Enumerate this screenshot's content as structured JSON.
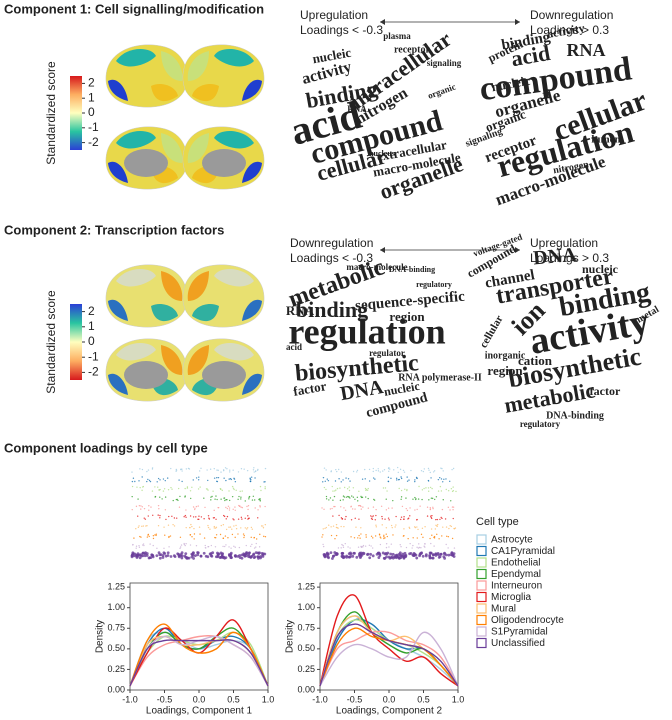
{
  "sections": [
    {
      "title": "Component 1: Cell signalling/modification",
      "colorbar": {
        "label": "Standardized score",
        "lim": [
          -2.5,
          2.5
        ],
        "ticks": [
          2,
          1,
          0,
          -1,
          -2
        ],
        "colors": [
          "#d7191c",
          "#fdae61",
          "#ffffbf",
          "#29c5a0",
          "#2b3fd6"
        ]
      },
      "arrow": {
        "left": [
          "Upregulation",
          "Loadings < -0.3"
        ],
        "right": [
          "Downregulation",
          "Loadings > 0.3"
        ]
      },
      "clouds": [
        {
          "color": "#2a3fd6",
          "words": [
            "intracellular",
            "acid",
            "binding",
            "compound",
            "cellular",
            "organelle",
            "extracellular",
            "macro-molecule",
            "nitrogen",
            "activity",
            "nucleic",
            "receptor",
            "plasma",
            "organic",
            "signaling",
            "RNA",
            "nucleus"
          ]
        },
        {
          "color": "#e0401a",
          "words": [
            "compound",
            "cellular",
            "regulation",
            "acid",
            "RNA",
            "binding",
            "macro-molecule",
            "organelle",
            "receptor",
            "nucleic",
            "organic",
            "protein",
            "activity",
            "lumen",
            "signaling",
            "nitrogen"
          ]
        }
      ]
    },
    {
      "title": "Component 2: Transcription factors",
      "colorbar": {
        "label": "Standardized score",
        "lim": [
          -2.5,
          2.5
        ],
        "ticks": [
          2,
          1,
          0,
          -1,
          -2
        ],
        "colors": [
          "#2b3fd6",
          "#29c5a0",
          "#ffffbf",
          "#fdae61",
          "#d7191c"
        ]
      },
      "arrow": {
        "left": [
          "Downregulation",
          "Loadings < -0.3"
        ],
        "right": [
          "Upregulation",
          "Loadings > 0.3"
        ]
      },
      "clouds": [
        {
          "color": "#e0401a",
          "words": [
            "regulation",
            "metabolic",
            "binding",
            "sequence-specific",
            "biosynthetic",
            "DNA",
            "compound",
            "nucleic",
            "RNA polymerase-II",
            "region",
            "RNA",
            "factor",
            "macro-molecule",
            "regulator",
            "acid",
            "DNA-binding",
            "regulatory"
          ]
        },
        {
          "color": "#2a3fd6",
          "words": [
            "activity",
            "binding",
            "transporter",
            "ion",
            "biosynthetic",
            "metabolic",
            "DNA",
            "channel",
            "compound",
            "nucleic",
            "cation",
            "region",
            "factor",
            "cellular",
            "metal",
            "inorganic",
            "DNA-binding",
            "voltage-gated",
            "regulatory"
          ]
        }
      ]
    }
  ],
  "loadings_title": "Component loadings by cell type",
  "chart_data": [
    {
      "type": "line",
      "legend_title": "Cell type",
      "xlabel": "Loadings, Component 1",
      "ylabel": "Density",
      "x": [
        -1,
        -0.75,
        -0.5,
        -0.25,
        0,
        0.25,
        0.5,
        0.75,
        1
      ],
      "xlim": [
        -1,
        1
      ],
      "ylim": [
        0,
        1.3
      ],
      "xticks": [
        {
          "value": -1,
          "label": "-1.0"
        },
        -0.5,
        {
          "value": 0,
          "label": "0.0"
        },
        0.5,
        {
          "value": 1,
          "label": "1.0"
        }
      ],
      "yticks": [
        {
          "value": 0,
          "label": "0.00"
        },
        0.25,
        {
          "value": 0.5,
          "label": "0.50"
        },
        0.75,
        {
          "value": 1,
          "label": "1.00"
        },
        1.25
      ],
      "series": [
        {
          "name": "Astrocyte",
          "color": "#a6cee3",
          "values": [
            0.05,
            0.6,
            0.7,
            0.6,
            0.5,
            0.55,
            0.6,
            0.5,
            0.05
          ]
        },
        {
          "name": "CA1Pyramidal",
          "color": "#1f78b4",
          "values": [
            0.05,
            0.55,
            0.75,
            0.55,
            0.5,
            0.6,
            0.65,
            0.5,
            0.05
          ]
        },
        {
          "name": "Endothelial",
          "color": "#b2df8a",
          "values": [
            0.05,
            0.45,
            0.65,
            0.6,
            0.55,
            0.6,
            0.7,
            0.55,
            0.05
          ]
        },
        {
          "name": "Ependymal",
          "color": "#33a02c",
          "values": [
            0.05,
            0.5,
            0.7,
            0.55,
            0.5,
            0.65,
            0.75,
            0.5,
            0.05
          ]
        },
        {
          "name": "Interneuron",
          "color": "#fb9a99",
          "values": [
            0.05,
            0.4,
            0.55,
            0.6,
            0.65,
            0.65,
            0.55,
            0.4,
            0.05
          ]
        },
        {
          "name": "Microglia",
          "color": "#e31a1c",
          "values": [
            0.05,
            0.45,
            0.75,
            0.6,
            0.45,
            0.65,
            0.85,
            0.5,
            0.05
          ]
        },
        {
          "name": "Mural",
          "color": "#fdbf6f",
          "values": [
            0.05,
            0.55,
            0.65,
            0.55,
            0.55,
            0.6,
            0.6,
            0.45,
            0.05
          ]
        },
        {
          "name": "Oligodendrocyte",
          "color": "#ff7f00",
          "values": [
            0.05,
            0.6,
            0.8,
            0.55,
            0.45,
            0.5,
            0.7,
            0.5,
            0.05
          ]
        },
        {
          "name": "S1Pyramidal",
          "color": "#cab2d6",
          "values": [
            0.05,
            0.5,
            0.65,
            0.55,
            0.6,
            0.65,
            0.55,
            0.4,
            0.05
          ]
        },
        {
          "name": "Unclassified",
          "color": "#6a3d9a",
          "values": [
            0.05,
            0.5,
            0.6,
            0.6,
            0.6,
            0.6,
            0.6,
            0.45,
            0.05
          ]
        }
      ]
    },
    {
      "type": "line",
      "xlabel": "Loadings, Component 2",
      "ylabel": "Density",
      "x": [
        -1,
        -0.75,
        -0.5,
        -0.25,
        0,
        0.25,
        0.5,
        0.75,
        1
      ],
      "xlim": [
        -1,
        1
      ],
      "ylim": [
        0,
        1.3
      ],
      "xticks": [
        {
          "value": -1,
          "label": "-1.0"
        },
        -0.5,
        {
          "value": 0,
          "label": "0.0"
        },
        0.5,
        {
          "value": 1,
          "label": "1.0"
        }
      ],
      "yticks": [
        {
          "value": 0,
          "label": "0.00"
        },
        0.25,
        {
          "value": 0.5,
          "label": "0.50"
        },
        0.75,
        {
          "value": 1,
          "label": "1.00"
        },
        1.25
      ],
      "series": [
        {
          "name": "Astrocyte",
          "color": "#a6cee3",
          "values": [
            0.05,
            0.7,
            0.9,
            0.75,
            0.6,
            0.5,
            0.4,
            0.25,
            0.05
          ]
        },
        {
          "name": "CA1Pyramidal",
          "color": "#1f78b4",
          "values": [
            0.05,
            0.6,
            0.85,
            0.8,
            0.6,
            0.5,
            0.5,
            0.3,
            0.05
          ]
        },
        {
          "name": "Endothelial",
          "color": "#b2df8a",
          "values": [
            0.05,
            0.65,
            0.85,
            0.75,
            0.6,
            0.55,
            0.45,
            0.3,
            0.05
          ]
        },
        {
          "name": "Ependymal",
          "color": "#33a02c",
          "values": [
            0.05,
            0.7,
            0.95,
            0.7,
            0.55,
            0.45,
            0.5,
            0.3,
            0.05
          ]
        },
        {
          "name": "Interneuron",
          "color": "#fb9a99",
          "values": [
            0.05,
            0.5,
            0.6,
            0.7,
            0.7,
            0.6,
            0.55,
            0.4,
            0.05
          ]
        },
        {
          "name": "Microglia",
          "color": "#e31a1c",
          "values": [
            0.05,
            0.9,
            1.15,
            0.7,
            0.5,
            0.35,
            0.4,
            0.2,
            0.05
          ]
        },
        {
          "name": "Mural",
          "color": "#fdbf6f",
          "values": [
            0.05,
            0.7,
            0.9,
            0.7,
            0.6,
            0.65,
            0.5,
            0.3,
            0.05
          ]
        },
        {
          "name": "Oligodendrocyte",
          "color": "#ff7f00",
          "values": [
            0.05,
            0.55,
            0.75,
            0.65,
            0.6,
            0.55,
            0.5,
            0.3,
            0.05
          ]
        },
        {
          "name": "S1Pyramidal",
          "color": "#cab2d6",
          "values": [
            0.05,
            0.4,
            0.55,
            0.5,
            0.4,
            0.4,
            0.7,
            0.5,
            0.05
          ]
        },
        {
          "name": "Unclassified",
          "color": "#6a3d9a",
          "values": [
            0.05,
            0.65,
            0.8,
            0.7,
            0.6,
            0.55,
            0.5,
            0.35,
            0.05
          ]
        }
      ]
    }
  ]
}
